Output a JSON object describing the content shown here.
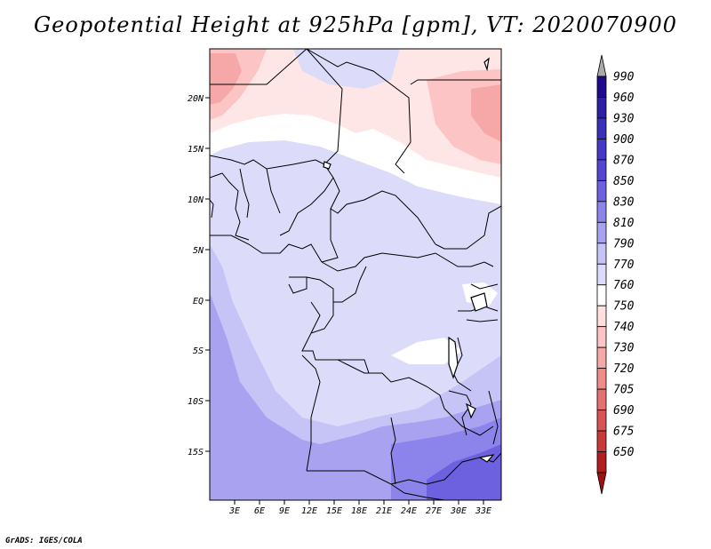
{
  "title": "Geopotential Height at 925hPa [gpm], VT: 2020070900",
  "credit": "GrADS: IGES/COLA",
  "map": {
    "lon_labels": [
      "3E",
      "6E",
      "9E",
      "12E",
      "15E",
      "18E",
      "21E",
      "24E",
      "27E",
      "30E",
      "33E"
    ],
    "lat_labels": [
      "20N",
      "15N",
      "10N",
      "5N",
      "EQ",
      "5S",
      "10S",
      "15S"
    ]
  },
  "colorbar": {
    "levels": [
      "990",
      "960",
      "930",
      "900",
      "870",
      "850",
      "830",
      "810",
      "790",
      "770",
      "760",
      "750",
      "740",
      "730",
      "720",
      "705",
      "690",
      "675",
      "650"
    ],
    "colors": [
      "#1e0a8c",
      "#2e1fa6",
      "#3a2fb8",
      "#4637c6",
      "#5545d2",
      "#6e61e0",
      "#8c84ea",
      "#a8a2f0",
      "#c6c3f6",
      "#dcdcfa",
      "#ffffff",
      "#ffe0e0",
      "#fcc4c4",
      "#f6a8a8",
      "#ee8c8c",
      "#e47070",
      "#d85454",
      "#c83a3a",
      "#b01e1e"
    ],
    "top_arrow_color": "#aaaaaa",
    "bottom_arrow_color": "#a01010"
  }
}
